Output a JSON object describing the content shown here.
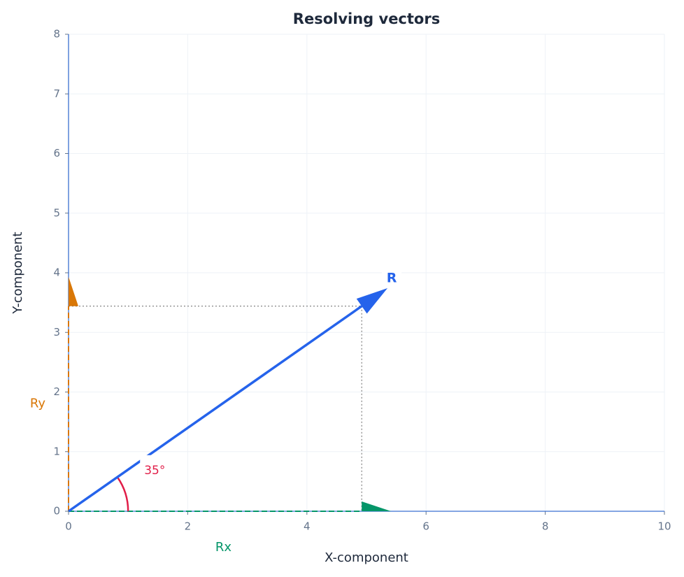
{
  "chart_data": {
    "type": "vector",
    "title": "Resolving vectors",
    "xlabel": "X-component",
    "ylabel": "Y-component",
    "xlim": [
      0,
      10
    ],
    "ylim": [
      0,
      8
    ],
    "xticks": [
      0,
      2,
      4,
      6,
      8,
      10
    ],
    "yticks": [
      0,
      1,
      2,
      3,
      4,
      5,
      6,
      7,
      8
    ],
    "grid": true,
    "vector": {
      "name": "R",
      "x": 4.92,
      "y": 3.44,
      "color": "#2563eb"
    },
    "components": [
      {
        "name": "Rx",
        "axis": "x",
        "value": 4.92,
        "color": "#059669"
      },
      {
        "name": "Ry",
        "axis": "y",
        "value": 3.44,
        "color": "#d97706"
      }
    ],
    "angle": {
      "value": 35,
      "label": "35°",
      "color": "#e11d48"
    }
  }
}
